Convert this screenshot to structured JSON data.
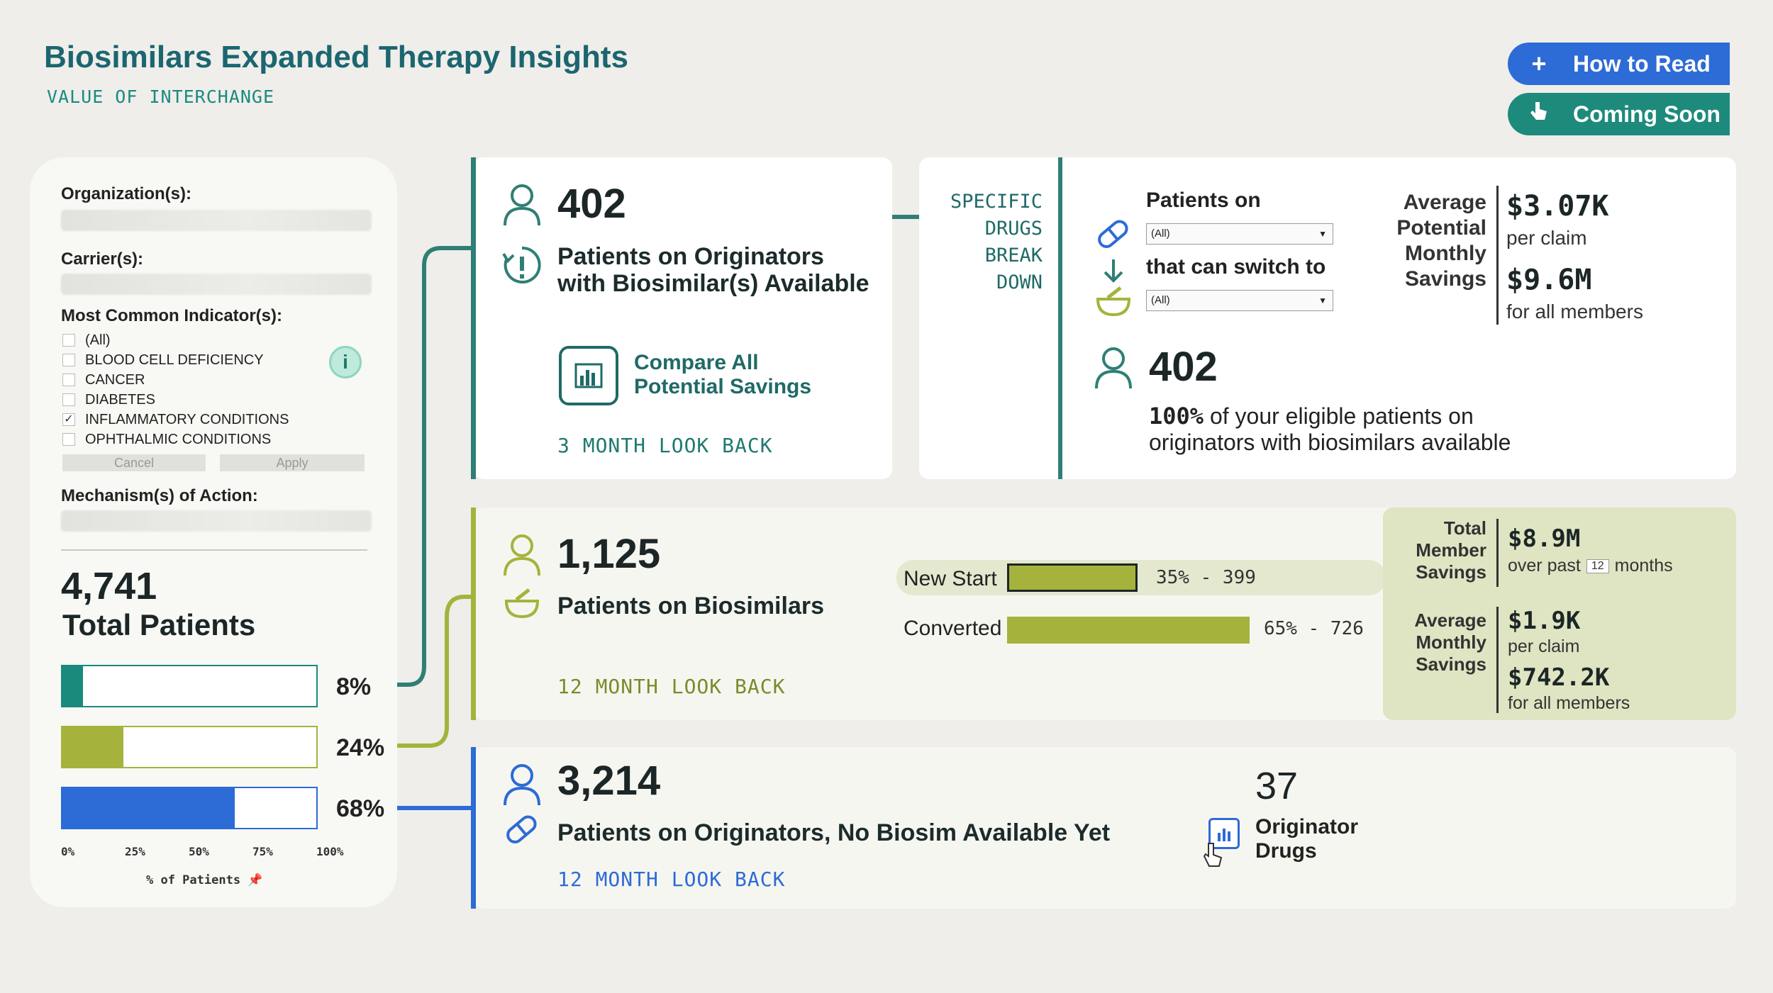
{
  "header": {
    "title": "Biosimilars Expanded Therapy Insights",
    "subtitle": "VALUE OF INTERCHANGE",
    "how_to_read": "How to Read",
    "coming_soon": "Coming Soon"
  },
  "filters": {
    "organization_label": "Organization(s):",
    "carrier_label": "Carrier(s):",
    "indicator_label": "Most Common Indicator(s):",
    "indicators": [
      {
        "label": "(All)",
        "checked": false
      },
      {
        "label": "BLOOD CELL DEFICIENCY",
        "checked": false
      },
      {
        "label": "CANCER",
        "checked": false
      },
      {
        "label": "DIABETES",
        "checked": false
      },
      {
        "label": "INFLAMMATORY CONDITIONS",
        "checked": true
      },
      {
        "label": "OPHTHALMIC CONDITIONS",
        "checked": false
      }
    ],
    "cancel": "Cancel",
    "apply": "Apply",
    "moa_label": "Mechanism(s) of Action:"
  },
  "total": {
    "count": "4,741",
    "label": "Total Patients",
    "bars": [
      {
        "pct_label": "8%",
        "value": 0.08,
        "color": "#1a8a7c"
      },
      {
        "pct_label": "24%",
        "value": 0.24,
        "color": "#a5b33c"
      },
      {
        "pct_label": "68%",
        "value": 0.68,
        "color": "#2d6bd6"
      }
    ],
    "ticks": [
      "0%",
      "25%",
      "50%",
      "75%",
      "100%"
    ],
    "axis_label": "% of Patients"
  },
  "originators_card": {
    "count": "402",
    "label_line1": "Patients on Originators",
    "label_line2": "with Biosimilar(s) Available",
    "compare_line1": "Compare All",
    "compare_line2": "Potential Savings",
    "lookback": "3 MONTH LOOK BACK"
  },
  "drugs_breakdown": {
    "side_label": [
      "SPECIFIC",
      "DRUGS",
      "BREAK",
      "DOWN"
    ],
    "patients_on": "Patients on",
    "dropdown1": "(All)",
    "switch_to": "that can switch to",
    "dropdown2": "(All)",
    "savings_label": [
      "Average",
      "Potential",
      "Monthly",
      "Savings"
    ],
    "per_claim_value": "$3.07K",
    "per_claim_label": "per claim",
    "all_members_value": "$9.6M",
    "all_members_label": "for all members",
    "count": "402",
    "pct": "100%",
    "eligible_line1": "of your eligible patients on",
    "eligible_line2": "originators with biosimilars available"
  },
  "biosimilars_card": {
    "count": "1,125",
    "label": "Patients on Biosimilars",
    "lookback": "12 MONTH LOOK BACK",
    "new_start_label": "New Start",
    "new_start_value": 0.35,
    "new_start_text": "35% - 399",
    "converted_label": "Converted",
    "converted_value": 0.65,
    "converted_text": "65% - 726",
    "total_savings_label": [
      "Total",
      "Member",
      "Savings"
    ],
    "total_savings_value": "$8.9M",
    "total_savings_sub_pre": "over past",
    "total_savings_months": "12",
    "total_savings_sub_post": "months",
    "avg_label": [
      "Average",
      "Monthly",
      "Savings"
    ],
    "avg_per_claim": "$1.9K",
    "avg_per_claim_label": "per claim",
    "avg_all": "$742.2K",
    "avg_all_label": "for all members"
  },
  "no_biosim_card": {
    "count": "3,214",
    "label": "Patients on Originators, No Biosim Available Yet",
    "lookback": "12 MONTH LOOK BACK",
    "drugs_count": "37",
    "drugs_line1": "Originator",
    "drugs_line2": "Drugs"
  },
  "colors": {
    "teal": "#1a8a7c",
    "olive": "#a5b33c",
    "blue": "#2d6bd6",
    "olive_bg": "#dfe5c2"
  }
}
